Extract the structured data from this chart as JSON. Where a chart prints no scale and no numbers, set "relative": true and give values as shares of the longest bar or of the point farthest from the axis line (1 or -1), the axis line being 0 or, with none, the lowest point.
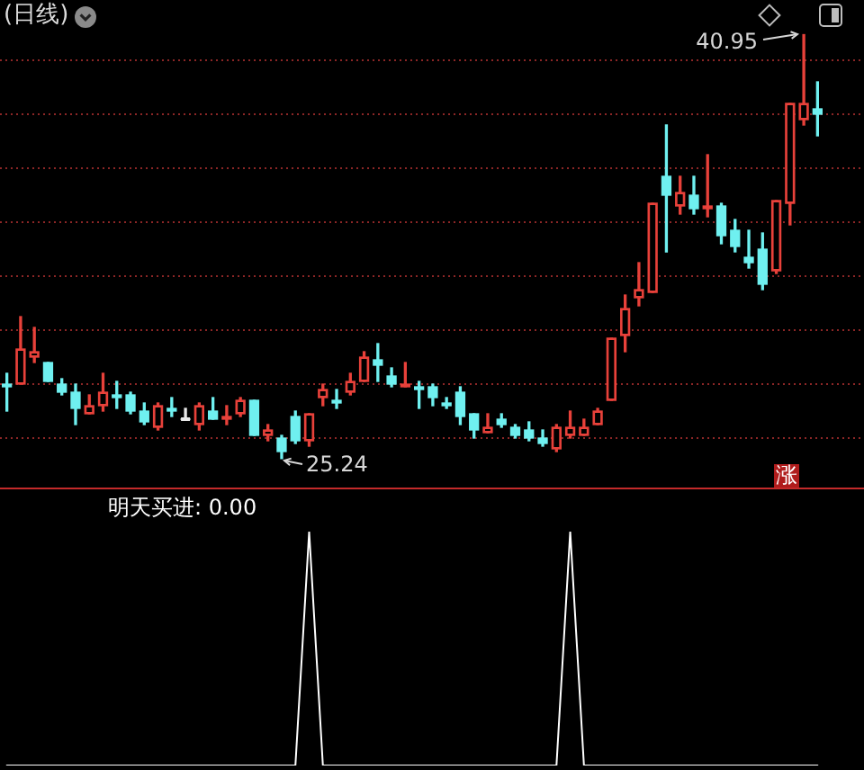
{
  "chart_data": [
    {
      "type": "candlestick",
      "title": "(日线)",
      "categories": [
        null,
        null,
        null,
        null,
        null,
        null,
        null,
        null,
        null,
        null,
        null,
        null,
        null,
        null,
        null,
        null,
        null,
        null,
        null,
        null,
        null,
        null,
        null,
        null,
        null,
        null,
        null,
        null,
        null,
        null,
        null,
        null,
        null,
        null,
        null,
        null,
        null,
        null,
        null,
        null,
        null,
        null,
        null,
        null,
        null,
        null,
        null,
        null,
        null,
        null,
        null,
        null,
        null,
        null,
        null,
        null,
        null,
        null,
        null,
        null
      ],
      "ohlc": [
        [
          28.0,
          28.4,
          27.0,
          27.9
        ],
        [
          28.0,
          30.5,
          28.0,
          29.3
        ],
        [
          29.0,
          30.1,
          28.8,
          29.2
        ],
        [
          28.8,
          28.8,
          28.1,
          28.1
        ],
        [
          28.0,
          28.2,
          27.6,
          27.7
        ],
        [
          27.7,
          28.0,
          26.5,
          27.1
        ],
        [
          26.9,
          27.6,
          26.9,
          27.2
        ],
        [
          27.2,
          28.4,
          27.0,
          27.7
        ],
        [
          27.6,
          28.1,
          27.1,
          27.5
        ],
        [
          27.6,
          27.7,
          26.9,
          27.0
        ],
        [
          27.0,
          27.3,
          26.5,
          26.6
        ],
        [
          26.4,
          27.3,
          26.3,
          27.2
        ],
        [
          27.1,
          27.5,
          26.8,
          27.0
        ],
        [
          26.7,
          27.1,
          26.7,
          26.7
        ],
        [
          26.5,
          27.3,
          26.3,
          27.2
        ],
        [
          27.0,
          27.5,
          26.7,
          26.7
        ],
        [
          26.7,
          27.2,
          26.5,
          26.8
        ],
        [
          26.9,
          27.5,
          26.8,
          27.4
        ],
        [
          27.4,
          27.4,
          26.1,
          26.1
        ],
        [
          26.1,
          26.5,
          25.9,
          26.3
        ],
        [
          26.0,
          26.1,
          25.24,
          25.5
        ],
        [
          26.8,
          27.0,
          25.8,
          25.9
        ],
        [
          25.9,
          26.9,
          25.7,
          26.9
        ],
        [
          27.5,
          28.0,
          27.2,
          27.8
        ],
        [
          27.4,
          27.8,
          27.1,
          27.3
        ],
        [
          27.7,
          28.4,
          27.6,
          28.1
        ],
        [
          28.1,
          29.2,
          28.1,
          29.0
        ],
        [
          28.9,
          29.5,
          28.1,
          28.7
        ],
        [
          28.3,
          28.6,
          27.9,
          28.0
        ],
        [
          27.9,
          28.8,
          27.9,
          28.0
        ],
        [
          27.9,
          28.1,
          27.1,
          27.8
        ],
        [
          27.9,
          28.0,
          27.2,
          27.5
        ],
        [
          27.3,
          27.5,
          27.1,
          27.2
        ],
        [
          27.7,
          27.9,
          26.5,
          26.8
        ],
        [
          26.9,
          26.9,
          26.0,
          26.3
        ],
        [
          26.2,
          26.9,
          26.2,
          26.4
        ],
        [
          26.7,
          26.9,
          26.4,
          26.5
        ],
        [
          26.4,
          26.5,
          26.0,
          26.1
        ],
        [
          26.3,
          26.6,
          25.9,
          26.0
        ],
        [
          26.0,
          26.3,
          25.7,
          25.8
        ],
        [
          25.6,
          26.5,
          25.5,
          26.4
        ],
        [
          26.1,
          27.0,
          26.0,
          26.4
        ],
        [
          26.1,
          26.7,
          26.1,
          26.4
        ],
        [
          26.5,
          27.1,
          26.5,
          27.0
        ],
        [
          27.4,
          29.7,
          27.4,
          29.7
        ],
        [
          29.8,
          31.3,
          29.2,
          30.8
        ],
        [
          31.2,
          32.5,
          30.9,
          31.5
        ],
        [
          31.4,
          34.7,
          31.4,
          34.7
        ],
        [
          35.7,
          37.6,
          32.9,
          35.0
        ],
        [
          34.6,
          35.7,
          34.3,
          35.1
        ],
        [
          35.0,
          35.7,
          34.3,
          34.5
        ],
        [
          34.5,
          36.5,
          34.2,
          34.6
        ],
        [
          34.6,
          34.7,
          33.2,
          33.5
        ],
        [
          33.7,
          34.1,
          32.9,
          33.1
        ],
        [
          32.7,
          33.7,
          32.3,
          32.5
        ],
        [
          33.0,
          33.6,
          31.5,
          31.7
        ],
        [
          32.2,
          34.8,
          32.1,
          34.8
        ],
        [
          34.7,
          38.4,
          33.9,
          38.4
        ],
        [
          37.8,
          40.95,
          37.6,
          38.4
        ],
        [
          38.2,
          39.2,
          37.2,
          38.0
        ]
      ],
      "colors": [
        "#6ff0f0",
        "#e8413a",
        "#e8413a",
        "#6ff0f0",
        "#6ff0f0",
        "#6ff0f0",
        "#e8413a",
        "#e8413a",
        "#6ff0f0",
        "#6ff0f0",
        "#6ff0f0",
        "#e8413a",
        "#6ff0f0",
        "#e8e8e8",
        "#e8413a",
        "#6ff0f0",
        "#e8413a",
        "#e8413a",
        "#6ff0f0",
        "#e8413a",
        "#6ff0f0",
        "#6ff0f0",
        "#e8413a",
        "#e8413a",
        "#6ff0f0",
        "#e8413a",
        "#e8413a",
        "#6ff0f0",
        "#6ff0f0",
        "#e8413a",
        "#6ff0f0",
        "#6ff0f0",
        "#6ff0f0",
        "#6ff0f0",
        "#6ff0f0",
        "#e8413a",
        "#6ff0f0",
        "#6ff0f0",
        "#6ff0f0",
        "#6ff0f0",
        "#e8413a",
        "#e8413a",
        "#e8413a",
        "#e8413a",
        "#e8413a",
        "#e8413a",
        "#e8413a",
        "#e8413a",
        "#6ff0f0",
        "#e8413a",
        "#6ff0f0",
        "#e8413a",
        "#6ff0f0",
        "#6ff0f0",
        "#6ff0f0",
        "#6ff0f0",
        "#e8413a",
        "#e8413a",
        "#e8413a",
        "#6ff0f0"
      ],
      "ylim": [
        24.1,
        42.2
      ],
      "yticks": [
        {
          "value": 26,
          "label": null
        },
        {
          "value": 28,
          "label": null
        },
        {
          "value": 30,
          "label": null
        },
        {
          "value": 32,
          "label": null
        },
        {
          "value": 34,
          "label": null
        },
        {
          "value": 36,
          "label": null
        },
        {
          "value": 38,
          "label": null
        },
        {
          "value": 40,
          "label": null
        }
      ],
      "grid": "y",
      "tick_labels": false,
      "annotations": [
        "40.95",
        "25.24",
        "涨"
      ]
    },
    {
      "type": "line",
      "categories": [
        null,
        null,
        null,
        null,
        null,
        null,
        null,
        null,
        null,
        null,
        null,
        null,
        null,
        null,
        null,
        null,
        null,
        null,
        null,
        null,
        null,
        null,
        null,
        null,
        null,
        null,
        null,
        null,
        null,
        null,
        null,
        null,
        null,
        null,
        null,
        null,
        null,
        null,
        null,
        null,
        null,
        null,
        null,
        null,
        null,
        null,
        null,
        null,
        null,
        null,
        null,
        null,
        null,
        null,
        null,
        null,
        null,
        null,
        null,
        null
      ],
      "series": [
        {
          "name": "明天买进: 0.00",
          "color": "#ffffff",
          "values": [
            0,
            0,
            0,
            0,
            0,
            0,
            0,
            0,
            0,
            0,
            0,
            0,
            0,
            0,
            0,
            0,
            0,
            0,
            0,
            0,
            0,
            0,
            1,
            0,
            0,
            0,
            0,
            0,
            0,
            0,
            0,
            0,
            0,
            0,
            0,
            0,
            0,
            0,
            0,
            0,
            0,
            1,
            0,
            0,
            0,
            0,
            0,
            0,
            0,
            0,
            0,
            0,
            0,
            0,
            0,
            0,
            0,
            0,
            0,
            0
          ]
        }
      ],
      "relative": true,
      "legend": "top left",
      "tick_labels": false,
      "marker": "none"
    }
  ]
}
